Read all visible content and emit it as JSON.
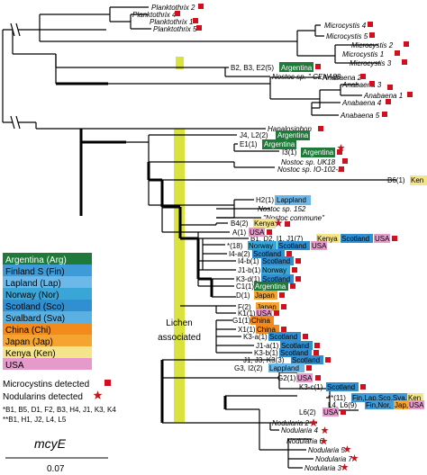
{
  "colors": {
    "argentina": "#1f7a3a",
    "finland": "#3f9bd8",
    "lapland": "#6cb8e8",
    "norway": "#3aa6d8",
    "scotland": "#2f8fd0",
    "svalbard": "#5ab0e0",
    "china": "#f28a1c",
    "japan": "#f6a431",
    "kenya": "#f4e48a",
    "usa": "#e59acb",
    "lichen_bar": "#d9e23e",
    "mc_square": "#d0101e",
    "nod_star": "#c0181e"
  },
  "legend": {
    "countries": [
      {
        "label": "Argentina (Arg)",
        "key": "argentina"
      },
      {
        "label": "Finland S (Fin)",
        "key": "finland"
      },
      {
        "label": "Lapland (Lap)",
        "key": "lapland"
      },
      {
        "label": "Norway (Nor)",
        "key": "norway"
      },
      {
        "label": "Scotland (Sco)",
        "key": "scotland"
      },
      {
        "label": "Svalbard (Sva)",
        "key": "svalbard"
      },
      {
        "label": "China (Chi)",
        "key": "china"
      },
      {
        "label": "Japan (Jap)",
        "key": "japan"
      },
      {
        "label": "Kenya (Ken)",
        "key": "kenya"
      },
      {
        "label": "USA",
        "key": "usa"
      }
    ],
    "mc_label": "Microcystins detected",
    "nod_label": "Nodularins detected",
    "footnote1": "*B1, B5, D1, F2, B3, H4, J1, K3, K4",
    "footnote2": "**B1, H1, J2, L4, L5",
    "gene": "mcyE",
    "scale": "0.07",
    "lichen_line1": "Lichen",
    "lichen_line2": "associated"
  },
  "tips": {
    "plank2": "Planktothrix 2",
    "plank4": "Planktothrix 4",
    "plank1": "Planktothrix 1",
    "plank5": "Planktothrix 5",
    "micro4": "Microcystis 4",
    "micro5": "Microcystis 5",
    "micro2": "Microcystis 2",
    "micro1": "Microcystis 1",
    "micro3": "Microcystis 3",
    "b2": "B2, B3, E2(5)",
    "b2c": "Argentina",
    "cena": "Nostoc sp. \" CENA88",
    "ana2": "Anabaena 2",
    "ana3": "Anabaena 3",
    "ana1": "Anabaena 1",
    "ana4": "Anabaena 4",
    "ana5": "Anabaena 5",
    "hapalo": "Hapalosiphon",
    "j4": "J4, L2(2)",
    "j4c": "Argentina",
    "e1": "E1(1)",
    "e1c": "Argentina",
    "i3": "I3(1)",
    "i3c": "Argentina",
    "uk18": "Nostoc sp. UK18",
    "io102": "Nostoc sp. IO-102-I",
    "b6": "B6(1)",
    "b6c": "Ken",
    "h2": "H2(1)",
    "h2c": "Lappland",
    "n152": "Nostoc sp. 152",
    "ncomm": "\"Nostoc commune\"",
    "b4": "B4(2)",
    "b4c": "Kenya",
    "a1": "A(1)",
    "a1c": "USA",
    "b1": "B1, D2, I1, J1(7)",
    "b1c1": "Kenya",
    "b1c2": "Scotland",
    "b1c3": "USA",
    "s18": "*(18)",
    "s18c1": "Norway",
    "s18c2": "Scotland",
    "s18c3": "USA",
    "i4a": "I4-a(2)",
    "i4ac": "Scotland",
    "i4b": "I4-b(1)",
    "i4bc": "Scotland",
    "j1b": "J1-b(1)",
    "j1bc": "Norway",
    "k3d": "K3-d(1)",
    "k3dc": "Scotland",
    "c1": "C1(1)",
    "c1c": "Argentina",
    "d1": "D(1)",
    "d1c": "Japan",
    "f2": "F(2)",
    "f2c": "Japan",
    "k1": "K1(1)",
    "k1c": "USA",
    "g1": "G1(1)",
    "g1c": "China",
    "x1": "X1(1)",
    "x1c": "China",
    "k3a": "K3-a(1)",
    "k3ac": "Scotland",
    "j1a": "J1-a(1)",
    "j1ac": "Scotland",
    "k3b": "K3-b(1)",
    "k3bc": "Scotland",
    "j1j3": "J1, J3, K3(3)",
    "j1j3c": "Scotland",
    "g3": "G3, I2(2)",
    "g3c": "Lappland",
    "g2": "G2(1)",
    "g2c": "USA",
    "k3c": "K3-c(1)",
    "k3cc": "Scotland",
    "s11": "**(11)",
    "s11c1": "Fin,Lap,Sco,Sva,",
    "s11c2": "Ken",
    "l4": "L4, L6(9)",
    "l4c1": "Fin,Nor,",
    "l4c2": "Jap,",
    "l4c3": "USA",
    "l6": "L6(2)",
    "l6c": "USA",
    "nod2": "Nodularia 2",
    "nod4": "Nodularia 4",
    "nod6": "Nodularia 6",
    "nod5": "Nodularia 5",
    "nod7": "Nodularia 7",
    "nod3": "Nodularia 3"
  }
}
